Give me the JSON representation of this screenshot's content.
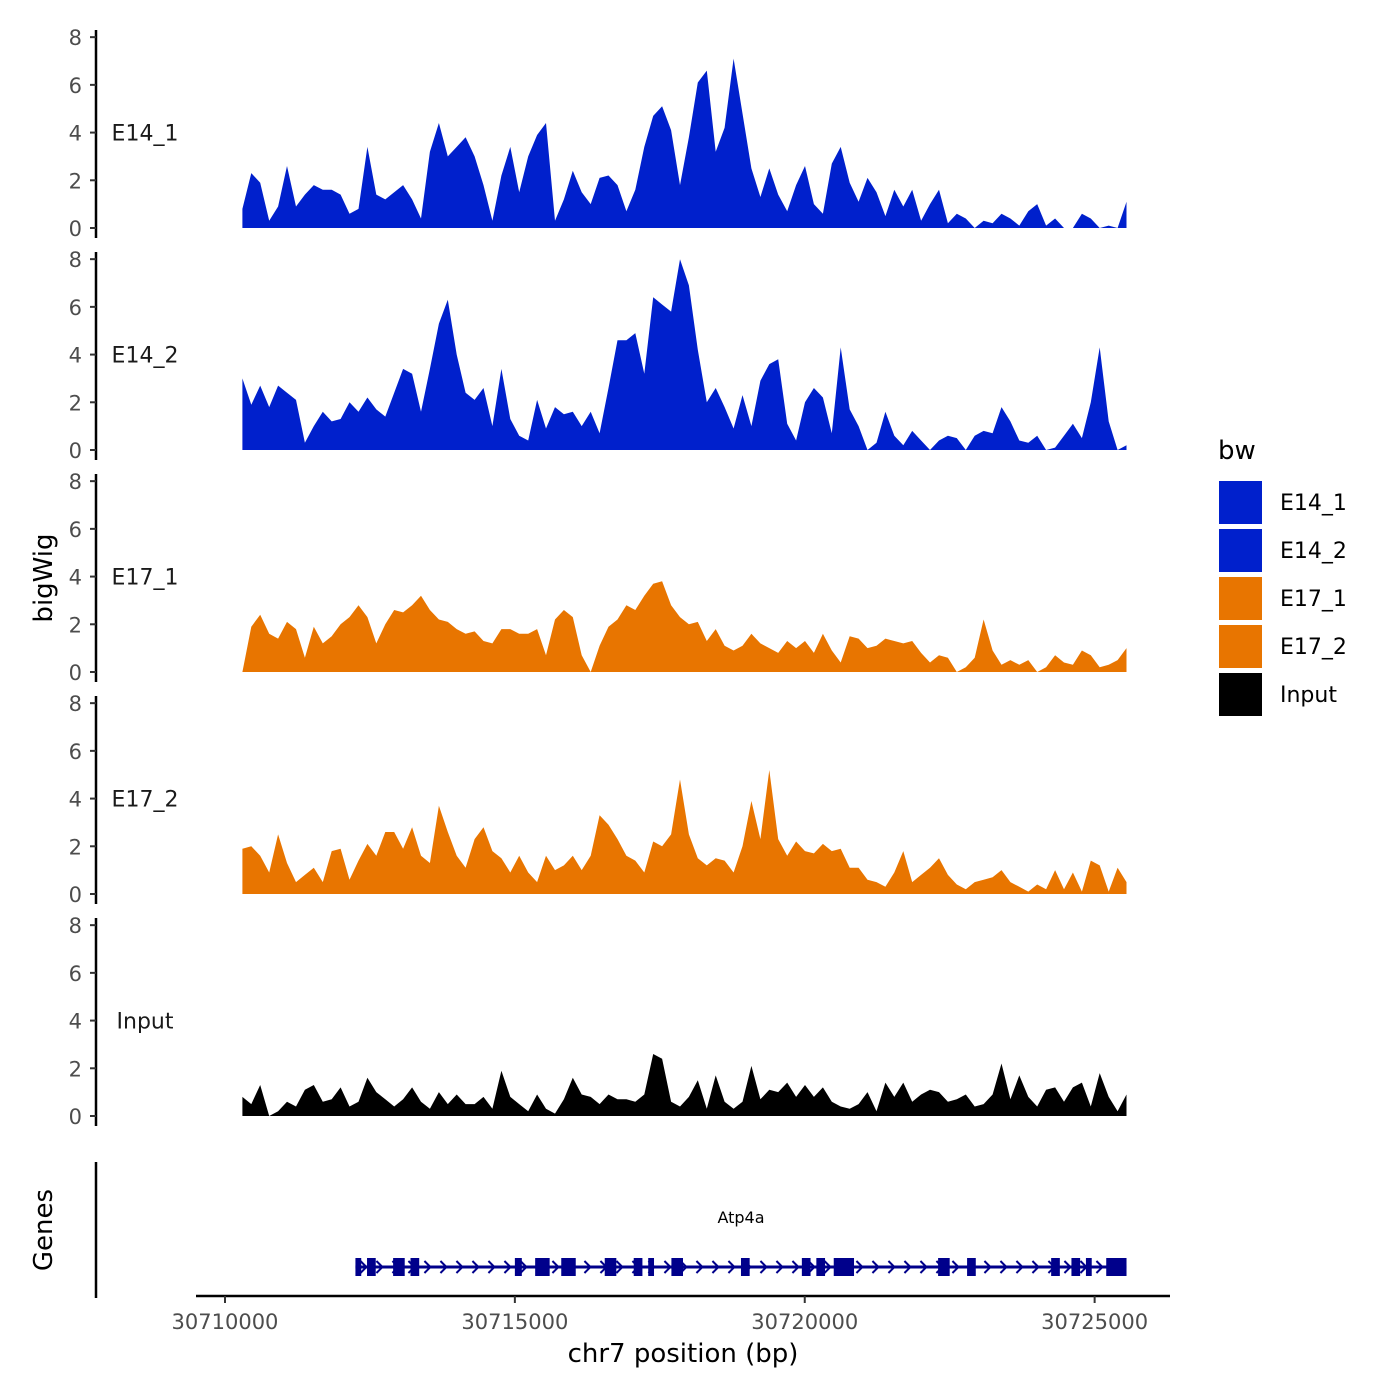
{
  "chart_data": {
    "type": "area",
    "title": "",
    "ylabel": "bigWig",
    "xlabel": "chr7 position (bp)",
    "chromosome": "chr7",
    "xlim": [
      30709500,
      30726300
    ],
    "ylim": [
      0,
      8.3
    ],
    "yticks": [
      0,
      2,
      4,
      6,
      8
    ],
    "xticks": [
      30710000,
      30715000,
      30720000,
      30725000
    ],
    "xtick_labels": [
      "30710000",
      "30715000",
      "30720000",
      "30725000"
    ],
    "x_start": 30710300,
    "x_end": 30725550,
    "tracks": [
      {
        "name": "E14_1",
        "label": "E14_1",
        "color": "#0020CC",
        "values": [
          0.8,
          2.3,
          1.9,
          0.3,
          0.9,
          2.6,
          0.9,
          1.4,
          1.8,
          1.6,
          1.6,
          1.4,
          0.6,
          0.8,
          3.4,
          1.4,
          1.2,
          1.5,
          1.8,
          1.2,
          0.4,
          3.2,
          4.4,
          3.0,
          3.4,
          3.8,
          3.0,
          1.8,
          0.3,
          2.2,
          3.4,
          1.5,
          3.0,
          3.9,
          4.4,
          0.3,
          1.2,
          2.4,
          1.5,
          1.0,
          2.1,
          2.2,
          1.8,
          0.7,
          1.6,
          3.4,
          4.7,
          5.1,
          4.1,
          1.8,
          3.8,
          6.1,
          6.6,
          3.2,
          4.2,
          7.1,
          4.8,
          2.5,
          1.3,
          2.5,
          1.4,
          0.7,
          1.8,
          2.6,
          1.0,
          0.6,
          2.7,
          3.4,
          1.9,
          1.1,
          2.1,
          1.5,
          0.5,
          1.6,
          0.9,
          1.6,
          0.3,
          1.0,
          1.6,
          0.2,
          0.6,
          0.4,
          0.0,
          0.3,
          0.2,
          0.6,
          0.4,
          0.1,
          0.7,
          1.0,
          0.1,
          0.4,
          0.0,
          0.0,
          0.6,
          0.4,
          0.0,
          0.1,
          0.0,
          1.1
        ]
      },
      {
        "name": "E14_2",
        "label": "E14_2",
        "color": "#0020CC",
        "values": [
          3.0,
          1.9,
          2.7,
          1.8,
          2.7,
          2.4,
          2.1,
          0.3,
          1.0,
          1.6,
          1.2,
          1.3,
          2.0,
          1.6,
          2.2,
          1.7,
          1.4,
          2.4,
          3.4,
          3.2,
          1.6,
          3.4,
          5.3,
          6.3,
          4.0,
          2.4,
          2.1,
          2.6,
          1.0,
          3.4,
          1.3,
          0.6,
          0.4,
          2.1,
          0.9,
          1.8,
          1.5,
          1.6,
          1.0,
          1.6,
          0.7,
          2.6,
          4.6,
          4.6,
          4.9,
          3.2,
          6.4,
          6.1,
          5.8,
          8.0,
          6.9,
          4.2,
          2.0,
          2.6,
          1.8,
          0.9,
          2.3,
          1.0,
          2.9,
          3.6,
          3.8,
          1.1,
          0.4,
          2.0,
          2.6,
          2.2,
          0.7,
          4.3,
          1.7,
          1.0,
          0.0,
          0.3,
          1.6,
          0.6,
          0.2,
          0.8,
          0.4,
          0.0,
          0.4,
          0.6,
          0.5,
          0.0,
          0.6,
          0.8,
          0.7,
          1.8,
          1.2,
          0.4,
          0.3,
          0.6,
          0.0,
          0.1,
          0.6,
          1.1,
          0.5,
          2.0,
          4.3,
          1.2,
          0.0,
          0.2
        ]
      },
      {
        "name": "E17_1",
        "label": "E17_1",
        "color": "#E87500",
        "values": [
          0.0,
          1.9,
          2.4,
          1.6,
          1.4,
          2.1,
          1.8,
          0.6,
          1.9,
          1.2,
          1.5,
          2.0,
          2.3,
          2.8,
          2.3,
          1.2,
          2.0,
          2.6,
          2.5,
          2.8,
          3.2,
          2.6,
          2.2,
          2.1,
          1.8,
          1.6,
          1.7,
          1.3,
          1.2,
          1.8,
          1.8,
          1.6,
          1.6,
          1.8,
          0.7,
          2.2,
          2.6,
          2.3,
          0.7,
          0.0,
          1.1,
          1.9,
          2.2,
          2.8,
          2.6,
          3.2,
          3.7,
          3.8,
          2.8,
          2.3,
          2.0,
          2.1,
          1.3,
          1.8,
          1.1,
          0.9,
          1.1,
          1.6,
          1.2,
          1.0,
          0.8,
          1.3,
          1.0,
          1.3,
          0.8,
          1.6,
          0.9,
          0.4,
          1.5,
          1.4,
          1.0,
          1.1,
          1.4,
          1.3,
          1.2,
          1.3,
          0.8,
          0.4,
          0.7,
          0.6,
          0.0,
          0.2,
          0.6,
          2.2,
          0.9,
          0.3,
          0.5,
          0.3,
          0.5,
          0.0,
          0.2,
          0.7,
          0.4,
          0.3,
          0.9,
          0.7,
          0.2,
          0.3,
          0.5,
          1.0
        ]
      },
      {
        "name": "E17_2",
        "label": "E17_2",
        "color": "#E87500",
        "values": [
          1.9,
          2.0,
          1.6,
          0.9,
          2.5,
          1.3,
          0.5,
          0.8,
          1.1,
          0.5,
          1.8,
          1.9,
          0.6,
          1.4,
          2.1,
          1.6,
          2.6,
          2.6,
          1.9,
          2.8,
          1.6,
          1.3,
          3.7,
          2.6,
          1.6,
          1.1,
          2.3,
          2.8,
          1.8,
          1.5,
          0.9,
          1.6,
          0.9,
          0.5,
          1.6,
          1.0,
          1.2,
          1.6,
          1.0,
          1.6,
          3.3,
          2.9,
          2.3,
          1.6,
          1.4,
          0.9,
          2.2,
          2.0,
          2.5,
          4.8,
          2.5,
          1.5,
          1.2,
          1.5,
          1.4,
          0.9,
          2.0,
          3.9,
          2.3,
          5.2,
          2.3,
          1.6,
          2.2,
          1.8,
          1.7,
          2.1,
          1.8,
          1.9,
          1.1,
          1.1,
          0.6,
          0.5,
          0.3,
          0.9,
          1.8,
          0.5,
          0.8,
          1.1,
          1.5,
          0.8,
          0.4,
          0.2,
          0.5,
          0.6,
          0.7,
          1.0,
          0.5,
          0.3,
          0.1,
          0.4,
          0.2,
          1.0,
          0.2,
          0.9,
          0.1,
          1.4,
          1.2,
          0.1,
          1.1,
          0.5
        ]
      },
      {
        "name": "Input",
        "label": "Input",
        "color": "#000000",
        "values": [
          0.8,
          0.5,
          1.3,
          0.0,
          0.2,
          0.6,
          0.4,
          1.1,
          1.3,
          0.6,
          0.7,
          1.2,
          0.4,
          0.6,
          1.6,
          1.0,
          0.7,
          0.4,
          0.7,
          1.2,
          0.6,
          0.3,
          1.0,
          0.5,
          0.9,
          0.5,
          0.5,
          0.8,
          0.3,
          1.9,
          0.8,
          0.5,
          0.2,
          0.9,
          0.3,
          0.1,
          0.7,
          1.6,
          0.9,
          0.8,
          0.5,
          0.9,
          0.7,
          0.7,
          0.6,
          0.9,
          2.6,
          2.4,
          0.6,
          0.4,
          0.8,
          1.5,
          0.3,
          1.7,
          0.6,
          0.3,
          0.6,
          2.1,
          0.7,
          1.1,
          1.0,
          1.4,
          0.8,
          1.3,
          0.8,
          1.2,
          0.6,
          0.4,
          0.3,
          0.5,
          1.0,
          0.2,
          1.4,
          0.8,
          1.4,
          0.6,
          0.9,
          1.1,
          1.0,
          0.6,
          0.7,
          0.9,
          0.4,
          0.5,
          0.9,
          2.2,
          0.7,
          1.7,
          0.8,
          0.4,
          1.1,
          1.2,
          0.6,
          1.2,
          1.4,
          0.4,
          1.8,
          0.8,
          0.2,
          0.9
        ]
      }
    ],
    "legend": {
      "title": "bw",
      "position": "right",
      "entries": [
        {
          "label": "E14_1",
          "color": "#0020CC"
        },
        {
          "label": "E14_2",
          "color": "#0020CC"
        },
        {
          "label": "E17_1",
          "color": "#E87500"
        },
        {
          "label": "E17_2",
          "color": "#E87500"
        },
        {
          "label": "Input",
          "color": "#000000"
        }
      ]
    },
    "genes_panel": {
      "ylabel": "Genes",
      "gene_name": "Atp4a",
      "strand": "+",
      "color": "#00008B",
      "tx_start": 30712250,
      "tx_end": 30725550,
      "exons": [
        [
          30712250,
          30712350
        ],
        [
          30712450,
          30712600
        ],
        [
          30712900,
          30713100
        ],
        [
          30713200,
          30713350
        ],
        [
          30715000,
          30715120
        ],
        [
          30715350,
          30715600
        ],
        [
          30715800,
          30716050
        ],
        [
          30716550,
          30716750
        ],
        [
          30717050,
          30717200
        ],
        [
          30717300,
          30717400
        ],
        [
          30717700,
          30717900
        ],
        [
          30718900,
          30719050
        ],
        [
          30719950,
          30720100
        ],
        [
          30720200,
          30720350
        ],
        [
          30720500,
          30720850
        ],
        [
          30722300,
          30722500
        ],
        [
          30722800,
          30722950
        ],
        [
          30724250,
          30724400
        ],
        [
          30724600,
          30724750
        ],
        [
          30724850,
          30724950
        ],
        [
          30725200,
          30725550
        ]
      ]
    }
  }
}
